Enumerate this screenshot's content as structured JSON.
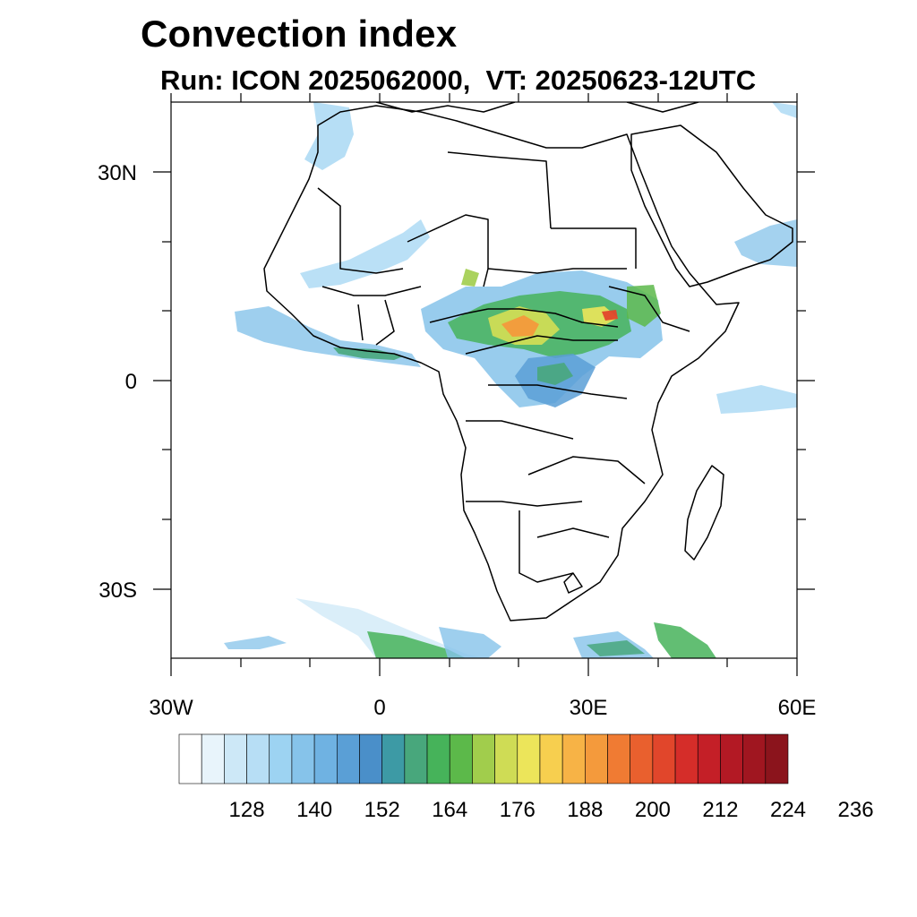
{
  "title": "Convection index",
  "subtitle": "Run: ICON 2025062000,  VT: 20250623-12UTC",
  "map": {
    "region": "Africa",
    "lon_range": [
      -30,
      60
    ],
    "lat_range": [
      -40,
      40
    ],
    "lat_tick_labels": [
      "30N",
      "0",
      "30S"
    ],
    "lon_tick_labels": [
      "30W",
      "0",
      "30E",
      "60E"
    ],
    "colorbar": {
      "tick_labels": [
        "128",
        "140",
        "152",
        "164",
        "176",
        "188",
        "200",
        "212",
        "224",
        "236"
      ],
      "colors": [
        "#ffffff",
        "#e8f4fb",
        "#cde8f7",
        "#b7def5",
        "#9dd3f2",
        "#86c3ea",
        "#6fb2e2",
        "#5a9fd6",
        "#4a8fc9",
        "#3d9aa5",
        "#48a77c",
        "#46b35a",
        "#5cb94a",
        "#a1cd4c",
        "#cfdc55",
        "#ece55a",
        "#f7cf4f",
        "#f7b346",
        "#f49a3c",
        "#f07b33",
        "#e9602e",
        "#e1462b",
        "#d52d29",
        "#c41f27",
        "#b31924",
        "#a01620",
        "#8b141c"
      ]
    }
  }
}
